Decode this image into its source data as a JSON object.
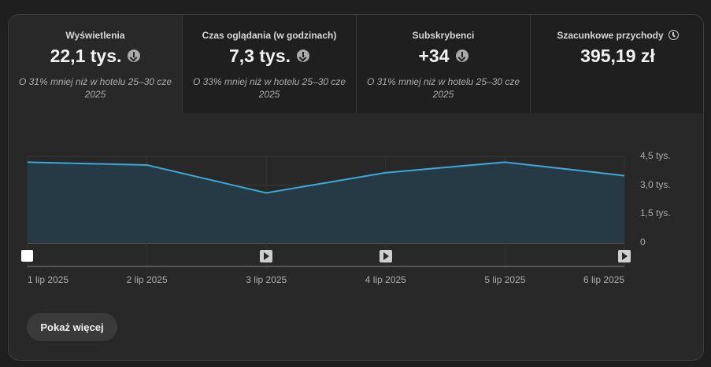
{
  "tabs": [
    {
      "title": "Wyświetlenia",
      "value": "22,1 tys.",
      "trend_icon": "arrow-down-circle",
      "comparison": "O 31% mniej niż w hotelu 25–30 cze 2025"
    },
    {
      "title": "Czas oglądania (w godzinach)",
      "value": "7,3 tys.",
      "trend_icon": "arrow-down-circle",
      "comparison": "O 33% mniej niż w hotelu 25–30 cze 2025"
    },
    {
      "title": "Subskrybenci",
      "value": "+34",
      "trend_icon": "arrow-down-circle",
      "comparison": "O 31% mniej niż w hotelu 25–30 cze 2025"
    },
    {
      "title": "Szacunkowe przychody",
      "value": "395,19 zł",
      "info_icon": "clock-icon",
      "comparison": ""
    }
  ],
  "chart_data": {
    "type": "area",
    "x": [
      "1 lip 2025",
      "2 lip 2025",
      "3 lip 2025",
      "4 lip 2025",
      "5 lip 2025",
      "6 lip 2025"
    ],
    "series": [
      {
        "values": [
          4200,
          4050,
          2600,
          3650,
          4200,
          3500
        ]
      }
    ],
    "yticks": [
      "0",
      "1,5 tys.",
      "3,0 tys.",
      "4,5 tys."
    ],
    "ytick_values": [
      0,
      1500,
      3000,
      4500
    ],
    "ylim": [
      0,
      4500
    ],
    "line_color": "#3ea6d6",
    "fill_color": "#263a45",
    "grid": true,
    "markers": [
      "start",
      "play",
      "play",
      "play"
    ]
  },
  "actions": {
    "show_more": "Pokaż więcej"
  }
}
